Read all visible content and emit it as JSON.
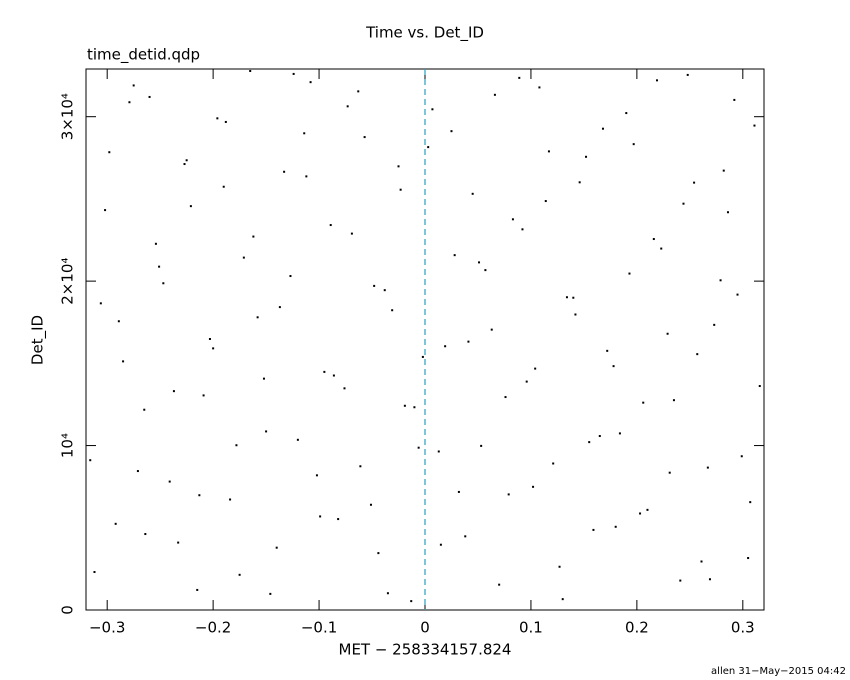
{
  "chart_data": {
    "type": "scatter",
    "title": "Time vs. Det_ID",
    "subtitle": "time_detid.qdp",
    "x_label": "MET − 258334157.824",
    "y_label": "Det_ID",
    "footer": "allen 31−May−2015 04:42",
    "xlim": [
      -0.32,
      0.32
    ],
    "ylim": [
      0,
      32900
    ],
    "xticks": [
      {
        "value": -0.3,
        "label": "−0.3"
      },
      {
        "value": -0.2,
        "label": "−0.2"
      },
      {
        "value": -0.1,
        "label": "−0.1"
      },
      0,
      0.1,
      0.2,
      0.3
    ],
    "yticks": [
      0,
      {
        "value": 10000,
        "label": "10⁴"
      },
      {
        "value": 20000,
        "label": "2×10⁴"
      },
      {
        "value": 30000,
        "label": "3×10⁴"
      }
    ],
    "reference_line_x": 0,
    "reference_line_color": "#2a9fbf",
    "series": [
      {
        "color": "#000000",
        "x": [
          -0.312,
          -0.298,
          -0.285,
          -0.271,
          -0.26,
          -0.247,
          -0.233,
          -0.221,
          -0.209,
          -0.196,
          -0.184,
          -0.171,
          -0.158,
          -0.146,
          -0.133,
          -0.12,
          -0.108,
          -0.095,
          -0.082,
          -0.069,
          -0.057,
          -0.044,
          -0.031,
          -0.019,
          -0.006,
          0.007,
          0.019,
          0.032,
          0.045,
          0.057,
          0.07,
          0.083,
          0.096,
          0.108,
          0.121,
          0.134,
          0.146,
          0.159,
          0.172,
          0.184,
          0.197,
          0.21,
          0.223,
          0.235,
          0.248,
          0.261,
          0.273,
          0.286,
          0.299,
          0.311,
          -0.306,
          -0.292,
          -0.279,
          -0.265,
          -0.254,
          -0.241,
          -0.227,
          -0.215,
          -0.203,
          -0.19,
          -0.178,
          -0.165,
          -0.152,
          -0.14,
          -0.127,
          -0.114,
          -0.102,
          -0.089,
          -0.076,
          -0.063,
          -0.051,
          -0.038,
          -0.025,
          -0.013,
          -0.002,
          0.013,
          0.025,
          0.038,
          0.051,
          0.063,
          0.076,
          0.089,
          0.102,
          0.114,
          0.127,
          0.14,
          0.152,
          0.165,
          0.178,
          0.19,
          0.203,
          0.216,
          0.229,
          0.241,
          0.254,
          0.267,
          0.279,
          0.292,
          0.305,
          0.316,
          -0.316,
          -0.302,
          -0.289,
          -0.275,
          -0.264,
          -0.251,
          -0.237,
          -0.225,
          -0.213,
          -0.2,
          -0.188,
          -0.175,
          -0.162,
          -0.15,
          -0.137,
          -0.124,
          -0.112,
          -0.099,
          -0.086,
          -0.073,
          -0.061,
          -0.048,
          -0.035,
          -0.023,
          -0.01,
          0.003,
          0.015,
          0.028,
          0.041,
          0.053,
          0.066,
          0.079,
          0.092,
          0.104,
          0.117,
          0.13,
          0.142,
          0.155,
          0.168,
          0.18,
          0.193,
          0.206,
          0.219,
          0.231,
          0.244,
          0.257,
          0.269,
          0.282,
          0.295,
          0.307
        ],
        "values": [
          2310,
          27840,
          15120,
          8450,
          31200,
          19870,
          4100,
          24560,
          13050,
          29900,
          6720,
          21430,
          17800,
          980,
          26650,
          10350,
          32100,
          14480,
          5530,
          22890,
          28760,
          3460,
          18230,
          12420,
          9870,
          30450,
          16040,
          7180,
          25310,
          20670,
          1540,
          23760,
          13890,
          31780,
          8910,
          19020,
          26010,
          4870,
          15760,
          10740,
          28330,
          6090,
          21980,
          12760,
          32540,
          2950,
          17340,
          24190,
          9350,
          29460,
          18650,
          5240,
          30880,
          12180,
          22270,
          7810,
          27120,
          1220,
          16480,
          25740,
          10020,
          32780,
          14070,
          3790,
          20310,
          28990,
          8190,
          23410,
          13480,
          31540,
          6400,
          19450,
          26980,
          540,
          15390,
          9640,
          29120,
          4480,
          21140,
          17050,
          12950,
          32360,
          7490,
          24870,
          2630,
          18990,
          27560,
          10580,
          14830,
          30220,
          5870,
          22560,
          16800,
          1790,
          25990,
          8660,
          20050,
          31020,
          3160,
          13620,
          9110,
          24320,
          17560,
          31900,
          4620,
          20880,
          13310,
          27350,
          6980,
          15910,
          29680,
          2140,
          22710,
          10860,
          18420,
          32600,
          26370,
          5690,
          14260,
          30630,
          8740,
          19710,
          1020,
          25560,
          12330,
          28150,
          3970,
          21580,
          16320,
          9980,
          31330,
          7030,
          23150,
          14680,
          27890,
          660,
          17970,
          10210,
          29270,
          5060,
          20460,
          12610,
          32210,
          8350,
          24710,
          15560,
          1870,
          26720,
          19180,
          6560
        ]
      }
    ]
  }
}
